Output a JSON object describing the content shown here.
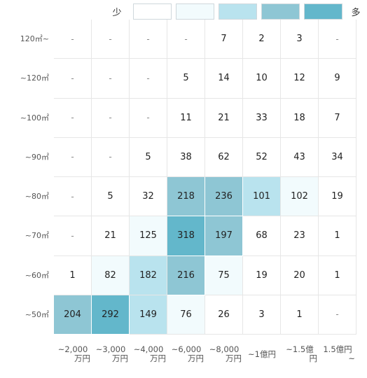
{
  "legend": {
    "low_label": "少",
    "high_label": "多",
    "swatches": [
      "#ffffff",
      "#f2fbfd",
      "#b9e3ee",
      "#8ec6d4",
      "#63b7cb"
    ]
  },
  "chart_data": {
    "type": "heatmap",
    "rows": [
      "120㎡~",
      "~120㎡",
      "~100㎡",
      "~90㎡",
      "~80㎡",
      "~70㎡",
      "~60㎡",
      "~50㎡"
    ],
    "columns": [
      [
        "~2,000",
        "万円"
      ],
      [
        "~3,000",
        "万円"
      ],
      [
        "~4,000",
        "万円"
      ],
      [
        "~6,000",
        "万円"
      ],
      [
        "~8,000",
        "万円"
      ],
      [
        "~1億円"
      ],
      [
        "~1.5億",
        "円"
      ],
      [
        "1.5億円",
        "~"
      ]
    ],
    "values": [
      [
        "-",
        "-",
        "-",
        "-",
        "7",
        "2",
        "3",
        "-"
      ],
      [
        "-",
        "-",
        "-",
        "5",
        "14",
        "10",
        "12",
        "9"
      ],
      [
        "-",
        "-",
        "-",
        "11",
        "21",
        "33",
        "18",
        "7"
      ],
      [
        "-",
        "-",
        "5",
        "38",
        "62",
        "52",
        "43",
        "34"
      ],
      [
        "-",
        "5",
        "32",
        "218",
        "236",
        "101",
        "102",
        "19"
      ],
      [
        "-",
        "21",
        "125",
        "318",
        "197",
        "68",
        "23",
        "1"
      ],
      [
        "1",
        "82",
        "182",
        "216",
        "75",
        "19",
        "20",
        "1"
      ],
      [
        "204",
        "292",
        "149",
        "76",
        "26",
        "3",
        "1",
        "-"
      ]
    ],
    "levels": [
      [
        0,
        0,
        0,
        0,
        0,
        0,
        0,
        0
      ],
      [
        0,
        0,
        0,
        0,
        0,
        0,
        0,
        0
      ],
      [
        0,
        0,
        0,
        0,
        0,
        0,
        0,
        0
      ],
      [
        0,
        0,
        0,
        0,
        0,
        0,
        0,
        0
      ],
      [
        0,
        0,
        0,
        3,
        3,
        2,
        1,
        0
      ],
      [
        0,
        0,
        1,
        4,
        3,
        0,
        0,
        0
      ],
      [
        0,
        1,
        2,
        3,
        1,
        0,
        0,
        0
      ],
      [
        3,
        4,
        2,
        1,
        0,
        0,
        0,
        0
      ]
    ]
  }
}
